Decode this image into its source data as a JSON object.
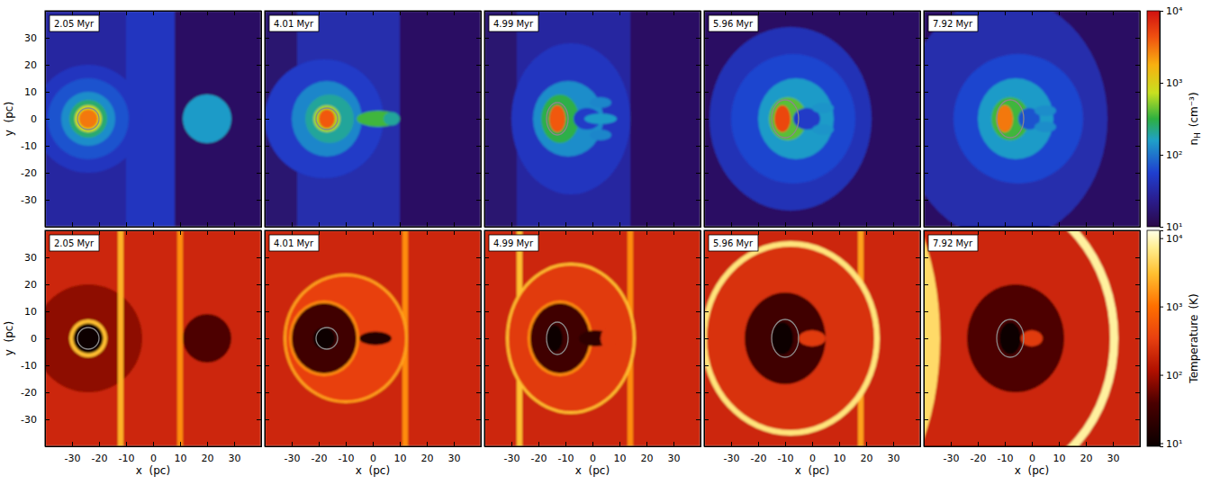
{
  "chart_data": {
    "type": "field_map",
    "xlabel": "x  (pc)",
    "ylabel": "y  (pc)",
    "xlim": [
      -40,
      40
    ],
    "ylim": [
      -40,
      40
    ],
    "xticks": [
      -30,
      -20,
      -10,
      0,
      10,
      20,
      30
    ],
    "yticks": [
      -30,
      -20,
      -10,
      0,
      10,
      20,
      30
    ],
    "panels": [
      {
        "time": "2.05 Myr",
        "contours": [
          {
            "cx": -24,
            "cy": 0,
            "rx": 4,
            "ry": 4
          }
        ]
      },
      {
        "time": "4.01 Myr",
        "contours": [
          {
            "cx": -17,
            "cy": 0,
            "rx": 4,
            "ry": 4
          }
        ]
      },
      {
        "time": "4.99 Myr",
        "contours": [
          {
            "cx": -13,
            "cy": 0,
            "rx": 4,
            "ry": 6
          }
        ]
      },
      {
        "time": "5.96 Myr",
        "contours": [
          {
            "cx": -10,
            "cy": 0,
            "rx": 5,
            "ry": 7
          }
        ]
      },
      {
        "time": "7.92 Myr",
        "contours": [
          {
            "cx": -8,
            "cy": 0,
            "rx": 5,
            "ry": 7
          }
        ]
      }
    ],
    "rows": [
      {
        "log": true,
        "colorbar": {
          "label": "n",
          "label_sub": "H",
          "label_unit": "(cm⁻³)",
          "range": [
            10,
            10000
          ],
          "ticks": [
            {
              "value": 10,
              "label": "10¹"
            },
            {
              "value": 100,
              "label": "10²"
            },
            {
              "value": 1000,
              "label": "10³"
            },
            {
              "value": 10000,
              "label": "10⁴"
            }
          ]
        },
        "fields": [
          [
            {
              "shape": "rect",
              "x0": -40,
              "x1": -10,
              "y0": -40,
              "y1": 40,
              "value": 30
            },
            {
              "shape": "rect",
              "x0": -10,
              "x1": 8,
              "y0": -40,
              "y1": 40,
              "value": 45
            },
            {
              "shape": "rect",
              "x0": 8,
              "x1": 40,
              "y0": -40,
              "y1": 40,
              "value": 14
            },
            {
              "shape": "ellipse",
              "cx": -24,
              "cy": 0,
              "rx": 20,
              "ry": 20,
              "value": 45
            },
            {
              "shape": "ellipse",
              "cx": -24,
              "cy": 0,
              "rx": 15,
              "ry": 15,
              "value": 70
            },
            {
              "shape": "ellipse",
              "cx": -24,
              "cy": 0,
              "rx": 10,
              "ry": 10,
              "value": 130
            },
            {
              "shape": "ellipse",
              "cx": -24,
              "cy": 0,
              "rx": 7,
              "ry": 7,
              "value": 250
            },
            {
              "shape": "ellipse",
              "cx": -24,
              "cy": 0,
              "rx": 5,
              "ry": 5,
              "value": 800
            },
            {
              "shape": "ellipse",
              "cx": -24,
              "cy": 0,
              "rx": 3.5,
              "ry": 3.5,
              "value": 3000
            },
            {
              "shape": "ellipse",
              "cx": 20,
              "cy": 0,
              "rx": 9,
              "ry": 9,
              "value": 150
            }
          ],
          [
            {
              "shape": "rect",
              "x0": -40,
              "x1": -28,
              "y0": -40,
              "y1": 40,
              "value": 16
            },
            {
              "shape": "rect",
              "x0": -28,
              "x1": 10,
              "y0": -40,
              "y1": 40,
              "value": 35
            },
            {
              "shape": "rect",
              "x0": 10,
              "x1": 40,
              "y0": -40,
              "y1": 40,
              "value": 14
            },
            {
              "shape": "ellipse",
              "cx": -18,
              "cy": 0,
              "rx": 22,
              "ry": 22,
              "value": 50
            },
            {
              "shape": "ellipse",
              "cx": -17,
              "cy": 0,
              "rx": 13,
              "ry": 14,
              "value": 120
            },
            {
              "shape": "ellipse",
              "cx": -16,
              "cy": 0,
              "rx": 9,
              "ry": 9,
              "value": 200
            },
            {
              "shape": "ellipse",
              "cx": 2,
              "cy": 0,
              "rx": 8,
              "ry": 3,
              "value": 350
            },
            {
              "shape": "ellipse",
              "cx": 7,
              "cy": 0,
              "rx": 3,
              "ry": 2.5,
              "value": 200
            },
            {
              "shape": "ellipse",
              "cx": -17,
              "cy": 0,
              "rx": 5,
              "ry": 5,
              "value": 600
            },
            {
              "shape": "ellipse",
              "cx": -17,
              "cy": 0,
              "rx": 3,
              "ry": 3.5,
              "value": 4000
            }
          ],
          [
            {
              "shape": "rect",
              "x0": -40,
              "x1": -28,
              "y0": -40,
              "y1": 40,
              "value": 16
            },
            {
              "shape": "rect",
              "x0": -28,
              "x1": 14,
              "y0": -40,
              "y1": 40,
              "value": 30
            },
            {
              "shape": "rect",
              "x0": 14,
              "x1": 40,
              "y0": -40,
              "y1": 40,
              "value": 14
            },
            {
              "shape": "ellipse",
              "cx": -8,
              "cy": 0,
              "rx": 22,
              "ry": 28,
              "value": 45
            },
            {
              "shape": "ellipse",
              "cx": -9,
              "cy": 0,
              "rx": 13,
              "ry": 14,
              "value": 130
            },
            {
              "shape": "ellipse",
              "cx": -12,
              "cy": 0,
              "rx": 7,
              "ry": 9,
              "value": 300
            },
            {
              "shape": "ellipse",
              "cx": -2,
              "cy": 0,
              "rx": 5,
              "ry": 4,
              "value": 50
            },
            {
              "shape": "ellipse",
              "cx": 3,
              "cy": 0,
              "rx": 6,
              "ry": 2,
              "value": 150
            },
            {
              "shape": "ellipse",
              "cx": 3,
              "cy": 6,
              "rx": 4,
              "ry": 2,
              "value": 120
            },
            {
              "shape": "ellipse",
              "cx": 3,
              "cy": -6,
              "rx": 4,
              "ry": 2,
              "value": 120
            },
            {
              "shape": "ellipse",
              "cx": -13,
              "cy": 0,
              "rx": 3,
              "ry": 5,
              "value": 4000
            }
          ],
          [
            {
              "shape": "rect",
              "x0": -40,
              "x1": 40,
              "y0": -40,
              "y1": 40,
              "value": 14
            },
            {
              "shape": "ellipse",
              "cx": -8,
              "cy": 0,
              "rx": 30,
              "ry": 34,
              "value": 40
            },
            {
              "shape": "ellipse",
              "cx": -7,
              "cy": 0,
              "rx": 23,
              "ry": 24,
              "value": 60
            },
            {
              "shape": "ellipse",
              "cx": -6,
              "cy": 0,
              "rx": 14,
              "ry": 15,
              "value": 150
            },
            {
              "shape": "ellipse",
              "cx": -9,
              "cy": 0,
              "rx": 7,
              "ry": 8,
              "value": 400
            },
            {
              "shape": "ellipse",
              "cx": -2,
              "cy": 0,
              "rx": 5,
              "ry": 4,
              "value": 50
            },
            {
              "shape": "ellipse",
              "cx": 4,
              "cy": 4,
              "rx": 4,
              "ry": 2,
              "value": 140
            },
            {
              "shape": "ellipse",
              "cx": 4,
              "cy": -4,
              "rx": 4,
              "ry": 2,
              "value": 140
            },
            {
              "shape": "ellipse",
              "cx": -11,
              "cy": 0,
              "rx": 3,
              "ry": 5,
              "value": 5000
            }
          ],
          [
            {
              "shape": "rect",
              "x0": -40,
              "x1": 40,
              "y0": -40,
              "y1": 40,
              "value": 14
            },
            {
              "shape": "ellipse",
              "cx": -10,
              "cy": 0,
              "rx": 38,
              "ry": 45,
              "value": 35
            },
            {
              "shape": "ellipse",
              "cx": -5,
              "cy": 0,
              "rx": 24,
              "ry": 24,
              "value": 60
            },
            {
              "shape": "ellipse",
              "cx": -6,
              "cy": 0,
              "rx": 14,
              "ry": 15,
              "value": 150
            },
            {
              "shape": "ellipse",
              "cx": -8,
              "cy": 0,
              "rx": 7,
              "ry": 8,
              "value": 350
            },
            {
              "shape": "ellipse",
              "cx": -1,
              "cy": 0,
              "rx": 4,
              "ry": 4,
              "value": 70
            },
            {
              "shape": "ellipse",
              "cx": 5,
              "cy": 3,
              "rx": 4,
              "ry": 2,
              "value": 130
            },
            {
              "shape": "ellipse",
              "cx": 5,
              "cy": -3,
              "rx": 4,
              "ry": 2,
              "value": 130
            },
            {
              "shape": "ellipse",
              "cx": -10,
              "cy": 0,
              "rx": 3,
              "ry": 5,
              "value": 3000
            }
          ]
        ]
      },
      {
        "log": true,
        "colorbar": {
          "label": "Temperature",
          "label_unit": "(K)",
          "range": [
            9,
            13000
          ],
          "ticks": [
            {
              "value": 10,
              "label": "10¹"
            },
            {
              "value": 100,
              "label": "10²"
            },
            {
              "value": 1000,
              "label": "10³"
            },
            {
              "value": 10000,
              "label": "10⁴"
            }
          ]
        },
        "fields": [
          [
            {
              "shape": "rect",
              "x0": -40,
              "x1": 40,
              "y0": -40,
              "y1": 40,
              "value": 200
            },
            {
              "shape": "ellipse",
              "cx": -24,
              "cy": 0,
              "rx": 20,
              "ry": 20,
              "value": 80
            },
            {
              "shape": "rect",
              "x0": -13,
              "x1": -11,
              "y0": -40,
              "y1": 40,
              "value": 2500
            },
            {
              "shape": "rect",
              "x0": 9,
              "x1": 11,
              "y0": -40,
              "y1": 40,
              "value": 1500
            },
            {
              "shape": "ellipse",
              "cx": -24,
              "cy": 0,
              "rx": 7,
              "ry": 7,
              "value": 3000
            },
            {
              "shape": "ellipse",
              "cx": -24,
              "cy": 0,
              "rx": 5.5,
              "ry": 5.5,
              "value": 10
            },
            {
              "shape": "ellipse",
              "cx": 20,
              "cy": 0,
              "rx": 9,
              "ry": 9,
              "value": 40
            }
          ],
          [
            {
              "shape": "rect",
              "x0": -40,
              "x1": 40,
              "y0": -40,
              "y1": 40,
              "value": 200
            },
            {
              "shape": "rect",
              "x0": 11,
              "x1": 13,
              "y0": -40,
              "y1": 40,
              "value": 1500
            },
            {
              "shape": "ellipse",
              "cx": -10,
              "cy": 0,
              "rx": 23,
              "ry": 24,
              "value": 2000
            },
            {
              "shape": "ellipse",
              "cx": -10,
              "cy": 0,
              "rx": 22,
              "ry": 23,
              "value": 350
            },
            {
              "shape": "ellipse",
              "cx": -18,
              "cy": 0,
              "rx": 13,
              "ry": 14,
              "value": 1500
            },
            {
              "shape": "ellipse",
              "cx": -18,
              "cy": 0,
              "rx": 12,
              "ry": 13,
              "value": 30
            },
            {
              "shape": "ellipse",
              "cx": -18,
              "cy": 0,
              "rx": 4,
              "ry": 4,
              "value": 10
            },
            {
              "shape": "ellipse",
              "cx": 1,
              "cy": 0,
              "rx": 6,
              "ry": 2.5,
              "value": 15
            }
          ],
          [
            {
              "shape": "rect",
              "x0": -40,
              "x1": 40,
              "y0": -40,
              "y1": 40,
              "value": 200
            },
            {
              "shape": "rect",
              "x0": -28,
              "x1": -26,
              "y0": -40,
              "y1": 40,
              "value": 3000
            },
            {
              "shape": "rect",
              "x0": 13,
              "x1": 15,
              "y0": -40,
              "y1": 40,
              "value": 1500
            },
            {
              "shape": "ellipse",
              "cx": -8,
              "cy": 0,
              "rx": 24,
              "ry": 28,
              "value": 3000
            },
            {
              "shape": "ellipse",
              "cx": -8,
              "cy": 0,
              "rx": 23,
              "ry": 27,
              "value": 300
            },
            {
              "shape": "ellipse",
              "cx": -12,
              "cy": 0,
              "rx": 12,
              "ry": 14,
              "value": 1500
            },
            {
              "shape": "ellipse",
              "cx": -12,
              "cy": 0,
              "rx": 11,
              "ry": 13,
              "value": 30
            },
            {
              "shape": "ellipse",
              "cx": -14,
              "cy": 0,
              "rx": 3,
              "ry": 5,
              "value": 10
            },
            {
              "shape": "ellipse",
              "cx": 1,
              "cy": 0,
              "rx": 6,
              "ry": 3,
              "value": 20
            },
            {
              "shape": "ellipse",
              "cx": 6,
              "cy": 0,
              "rx": 3,
              "ry": 4,
              "value": 300
            }
          ],
          [
            {
              "shape": "rect",
              "x0": -40,
              "x1": 40,
              "y0": -40,
              "y1": 40,
              "value": 200
            },
            {
              "shape": "rect",
              "x0": 17,
              "x1": 19,
              "y0": -40,
              "y1": 40,
              "value": 2000
            },
            {
              "shape": "ellipse",
              "cx": -8,
              "cy": 0,
              "rx": 33,
              "ry": 36,
              "value": 6000
            },
            {
              "shape": "ellipse",
              "cx": -8,
              "cy": 0,
              "rx": 31,
              "ry": 34,
              "value": 250
            },
            {
              "shape": "ellipse",
              "cx": -10,
              "cy": 0,
              "rx": 15,
              "ry": 17,
              "value": 30
            },
            {
              "shape": "ellipse",
              "cx": -11,
              "cy": 0,
              "rx": 4,
              "ry": 6,
              "value": 10
            },
            {
              "shape": "ellipse",
              "cx": 0,
              "cy": 0,
              "rx": 5,
              "ry": 3,
              "value": 300
            }
          ],
          [
            {
              "shape": "rect",
              "x0": -40,
              "x1": 40,
              "y0": -40,
              "y1": 40,
              "value": 200
            },
            {
              "shape": "ellipse",
              "cx": -15,
              "cy": 0,
              "rx": 47,
              "ry": 55,
              "value": 8000
            },
            {
              "shape": "ellipse",
              "cx": -15,
              "cy": 0,
              "rx": 44,
              "ry": 52,
              "value": 200
            },
            {
              "shape": "ellipse",
              "cx": -62,
              "cy": 0,
              "rx": 28,
              "ry": 60,
              "value": 5000
            },
            {
              "shape": "ellipse",
              "cx": -6,
              "cy": 0,
              "rx": 18,
              "ry": 20,
              "value": 40
            },
            {
              "shape": "ellipse",
              "cx": -8,
              "cy": 0,
              "rx": 4,
              "ry": 6,
              "value": 10
            },
            {
              "shape": "ellipse",
              "cx": 0,
              "cy": 0,
              "rx": 4,
              "ry": 3,
              "value": 300
            }
          ]
        ]
      }
    ]
  }
}
